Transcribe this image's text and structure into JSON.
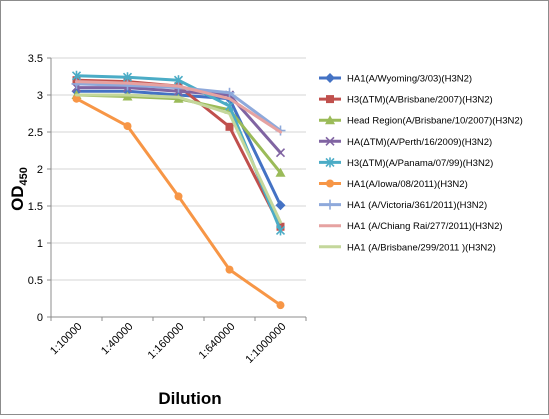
{
  "chart_data": {
    "type": "line",
    "xlabel": "Dilution",
    "ylabel": {
      "main": "OD",
      "sub": "450"
    },
    "ylim": [
      0,
      3.5
    ],
    "yticks": [
      "0",
      "0.5",
      "1",
      "1.5",
      "2",
      "2.5",
      "3",
      "3.5"
    ],
    "categories": [
      "1:10000",
      "1:40000",
      "1:160000",
      "1:640000",
      "1:1000000"
    ],
    "grid": "horizontal",
    "legend_position": "right",
    "series": [
      {
        "name": "HA1(A/Wyoming/3/03)(H3N2)",
        "color": "#4472C4",
        "marker": "diamond",
        "values": [
          3.05,
          3.05,
          3.0,
          2.95,
          1.51
        ]
      },
      {
        "name": "H3(ΔTM)(A/Brisbane/2007)(H3N2)",
        "color": "#C0504D",
        "marker": "square",
        "values": [
          3.2,
          3.18,
          3.12,
          2.57,
          1.22
        ]
      },
      {
        "name": "Head Region(A/Brisbane/10/2007)(H3N2)",
        "color": "#9BBB59",
        "marker": "triangle",
        "values": [
          3.0,
          2.98,
          2.95,
          2.8,
          1.95
        ]
      },
      {
        "name": "HA(ΔTM)(A/Perth/16/2009)(H3N2)",
        "color": "#8064A2",
        "marker": "x",
        "values": [
          3.1,
          3.1,
          3.05,
          3.0,
          2.22
        ]
      },
      {
        "name": "H3(ΔTM)(A/Panama/07/99)(H3N2)",
        "color": "#4BACC6",
        "marker": "asterisk",
        "values": [
          3.26,
          3.24,
          3.2,
          2.85,
          1.17
        ]
      },
      {
        "name": "HA1(A/Iowa/08/2011)(H3N2)",
        "color": "#F79646",
        "marker": "circle",
        "values": [
          2.95,
          2.58,
          1.63,
          0.64,
          0.16
        ]
      },
      {
        "name": "HA1 (A/Victoria/361/2011)(H3N2)",
        "color": "#8EA9DB",
        "marker": "plus",
        "values": [
          3.15,
          3.13,
          3.1,
          3.03,
          2.52
        ]
      },
      {
        "name": "HA1 (A/Chiang Rai/277/2011)(H3N2)",
        "color": "#E6A2A1",
        "marker": "none",
        "values": [
          3.18,
          3.16,
          3.12,
          2.95,
          2.5
        ]
      },
      {
        "name": "HA1 (A/Brisbane/299/2011 )(H3N2)",
        "color": "#C4D79B",
        "marker": "none",
        "values": [
          3.0,
          3.0,
          2.97,
          2.75,
          1.28
        ]
      }
    ]
  }
}
